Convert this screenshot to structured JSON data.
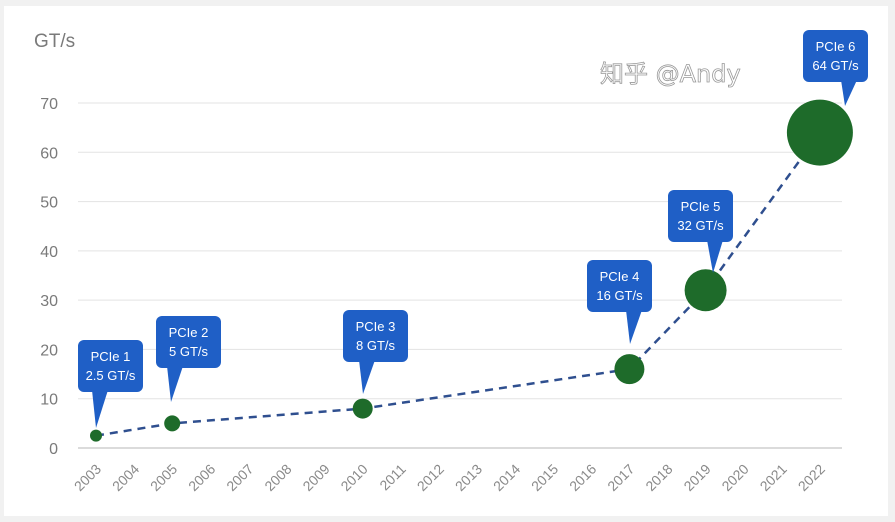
{
  "chart_data": {
    "type": "scatter",
    "ylabel": "GT/s",
    "ylim": [
      0,
      70
    ],
    "yticks": [
      0,
      10,
      20,
      30,
      40,
      50,
      60,
      70
    ],
    "categories": [
      "2003",
      "2004",
      "2005",
      "2006",
      "2007",
      "2008",
      "2009",
      "2010",
      "2011",
      "2012",
      "2013",
      "2014",
      "2015",
      "2016",
      "2017",
      "2018",
      "2019",
      "2020",
      "2021",
      "2022"
    ],
    "grid": true,
    "line_style": "dashed",
    "colors": {
      "marker": "#1e6b2a",
      "line": "#2f4f8f",
      "callout": "#1f5fc6"
    },
    "points": [
      {
        "x": "2003",
        "y": 2.5,
        "label_line1": "PCIe 1",
        "label_line2": "2.5 GT/s"
      },
      {
        "x": "2005",
        "y": 5,
        "label_line1": "PCIe 2",
        "label_line2": "5 GT/s"
      },
      {
        "x": "2010",
        "y": 8,
        "label_line1": "PCIe 3",
        "label_line2": "8 GT/s"
      },
      {
        "x": "2017",
        "y": 16,
        "label_line1": "PCIe 4",
        "label_line2": "16 GT/s"
      },
      {
        "x": "2019",
        "y": 32,
        "label_line1": "PCIe 5",
        "label_line2": "32 GT/s"
      },
      {
        "x": "2022",
        "y": 64,
        "label_line1": "PCIe 6",
        "label_line2": "64 GT/s"
      }
    ]
  },
  "watermark": "知乎 @Andy"
}
